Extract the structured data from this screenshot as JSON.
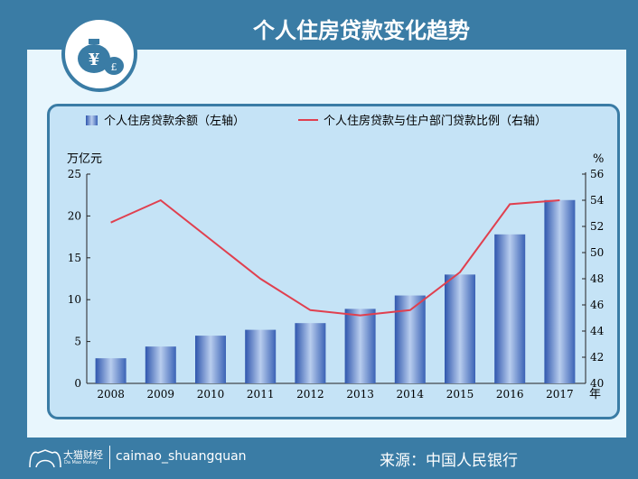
{
  "title": "个人住房贷款变化趋势",
  "footer": {
    "brand_cn": "大猫财经",
    "brand_en": "Da Mao Money",
    "handle": "caimao_shuangquan",
    "source": "来源：中国人民银行"
  },
  "colors": {
    "bar": "#3a62b5",
    "line": "#e0404f",
    "frame": "#3a7ca5"
  },
  "chart_data": {
    "type": "bar+line",
    "categories": [
      "2008",
      "2009",
      "2010",
      "2011",
      "2012",
      "2013",
      "2014",
      "2015",
      "2016",
      "2017"
    ],
    "series": [
      {
        "name": "个人住房贷款余额（左轴）",
        "type": "bar",
        "axis": "left",
        "values": [
          3.0,
          4.4,
          5.7,
          6.4,
          7.2,
          8.9,
          10.5,
          13.0,
          17.8,
          21.9
        ]
      },
      {
        "name": "个人住房贷款与住户部门贷款比例（右轴）",
        "type": "line",
        "axis": "right",
        "values": [
          52.3,
          54.0,
          51.0,
          48.0,
          45.6,
          45.2,
          45.6,
          48.5,
          53.7,
          54.0
        ]
      }
    ],
    "ylabel": "万亿元",
    "y2label": "%",
    "xlabel": "年",
    "ylim": [
      0,
      25
    ],
    "y2lim": [
      40,
      56
    ],
    "yticks": [
      "0",
      "5",
      "10",
      "15",
      "20",
      "25"
    ],
    "y2ticks": [
      "40",
      "42",
      "44",
      "46",
      "48",
      "50",
      "52",
      "54",
      "56"
    ],
    "legend": "top"
  }
}
